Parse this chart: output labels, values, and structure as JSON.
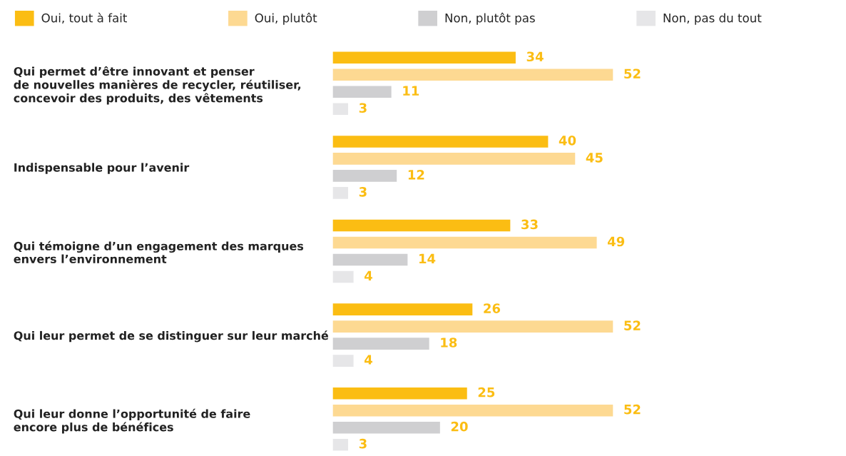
{
  "chart_data": {
    "type": "bar",
    "orientation": "horizontal",
    "categories": [
      "Qui permet d’être innovant et penser\nde nouvelles manières de recycler, réutiliser,\nconcevoir des produits, des vêtements",
      "Indispensable pour l’avenir",
      "Qui témoigne d’un engagement des marques\nenvers l’environnement",
      "Qui leur permet de se distinguer sur leur marché",
      "Qui leur donne l’opportunité de faire\nencore plus de bénéfices"
    ],
    "series": [
      {
        "name": "Oui, tout à fait",
        "color": "#fbbd13",
        "values": [
          34,
          40,
          33,
          26,
          25
        ]
      },
      {
        "name": "Oui, plutôt",
        "color": "#fdd992",
        "values": [
          52,
          45,
          49,
          52,
          52
        ]
      },
      {
        "name": "Non, plutôt pas",
        "color": "#cfcfd1",
        "values": [
          11,
          12,
          14,
          18,
          20
        ]
      },
      {
        "name": "Non, pas du tout",
        "color": "#e6e6e8",
        "values": [
          3,
          3,
          4,
          4,
          3
        ]
      }
    ],
    "data_labels": true,
    "legend": "top left",
    "tick_labels": "y",
    "grid": false
  }
}
